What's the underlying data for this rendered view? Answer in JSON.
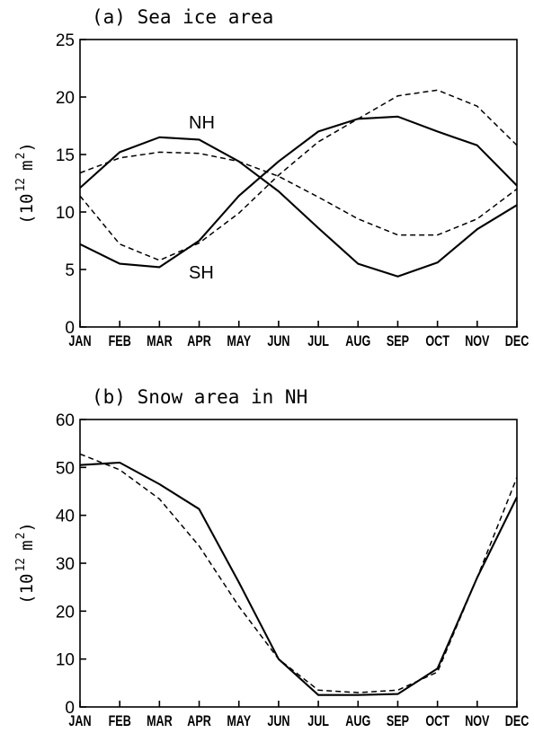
{
  "chart_data": [
    {
      "type": "line",
      "title": "(a) Sea ice area",
      "ylabel": {
        "prefix": "(10",
        "exp": "12",
        "unit": "m",
        "unit_exp": "2",
        "suffix": ")"
      },
      "categories": [
        "JAN",
        "FEB",
        "MAR",
        "APR",
        "MAY",
        "JUN",
        "JUL",
        "AUG",
        "SEP",
        "OCT",
        "NOV",
        "DEC"
      ],
      "yticks": [
        "0",
        "5",
        "10",
        "15",
        "20",
        "25"
      ],
      "ylim": [
        0,
        25
      ],
      "grid": false,
      "annotations": [
        "NH",
        "SH"
      ],
      "series": [
        {
          "style": "solid",
          "values": [
            12.1,
            15.2,
            16.5,
            16.3,
            14.4,
            11.8,
            8.6,
            5.5,
            4.4,
            5.6,
            8.5,
            10.6
          ]
        },
        {
          "style": "dashed",
          "values": [
            13.4,
            14.7,
            15.2,
            15.1,
            14.4,
            13.1,
            11.3,
            9.4,
            8.0,
            8.0,
            9.4,
            12.0
          ]
        },
        {
          "style": "solid",
          "values": [
            7.2,
            5.5,
            5.2,
            7.5,
            11.4,
            14.4,
            17.0,
            18.1,
            18.3,
            17.0,
            15.8,
            12.3
          ]
        },
        {
          "style": "dashed",
          "values": [
            11.4,
            7.2,
            5.8,
            7.3,
            9.9,
            13.2,
            16.1,
            18.1,
            20.1,
            20.6,
            19.2,
            15.8
          ]
        }
      ]
    },
    {
      "type": "line",
      "title": "(b) Snow area in NH",
      "ylabel": {
        "prefix": "(10",
        "exp": "12",
        "unit": "m",
        "unit_exp": "2",
        "suffix": ")"
      },
      "categories": [
        "JAN",
        "FEB",
        "MAR",
        "APR",
        "MAY",
        "JUN",
        "JUL",
        "AUG",
        "SEP",
        "OCT",
        "NOV",
        "DEC"
      ],
      "yticks": [
        "0",
        "10",
        "20",
        "30",
        "40",
        "50",
        "60"
      ],
      "ylim": [
        0,
        60
      ],
      "grid": false,
      "series": [
        {
          "style": "solid",
          "values": [
            50.5,
            51.0,
            46.5,
            41.3,
            26.0,
            10.0,
            2.5,
            2.5,
            2.7,
            8.0,
            27.0,
            43.8
          ]
        },
        {
          "style": "dashed",
          "values": [
            52.8,
            49.5,
            43.4,
            33.6,
            21.0,
            10.0,
            3.5,
            3.0,
            3.5,
            7.3,
            27.0,
            47.9
          ]
        }
      ]
    }
  ]
}
